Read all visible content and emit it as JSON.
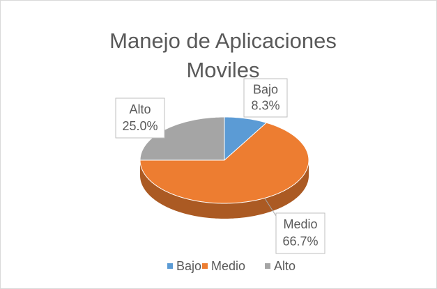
{
  "chart_data": {
    "type": "pie",
    "title": "Manejo de Aplicaciones Moviles",
    "categories": [
      "Bajo",
      "Medio",
      "Alto"
    ],
    "values": [
      8.3,
      66.7,
      25.0
    ],
    "value_labels": [
      "8.3%",
      "66.7%",
      "25.0%"
    ],
    "colors": [
      "#5b9bd5",
      "#ed7d31",
      "#a5a5a5"
    ],
    "legend": "bottom"
  }
}
